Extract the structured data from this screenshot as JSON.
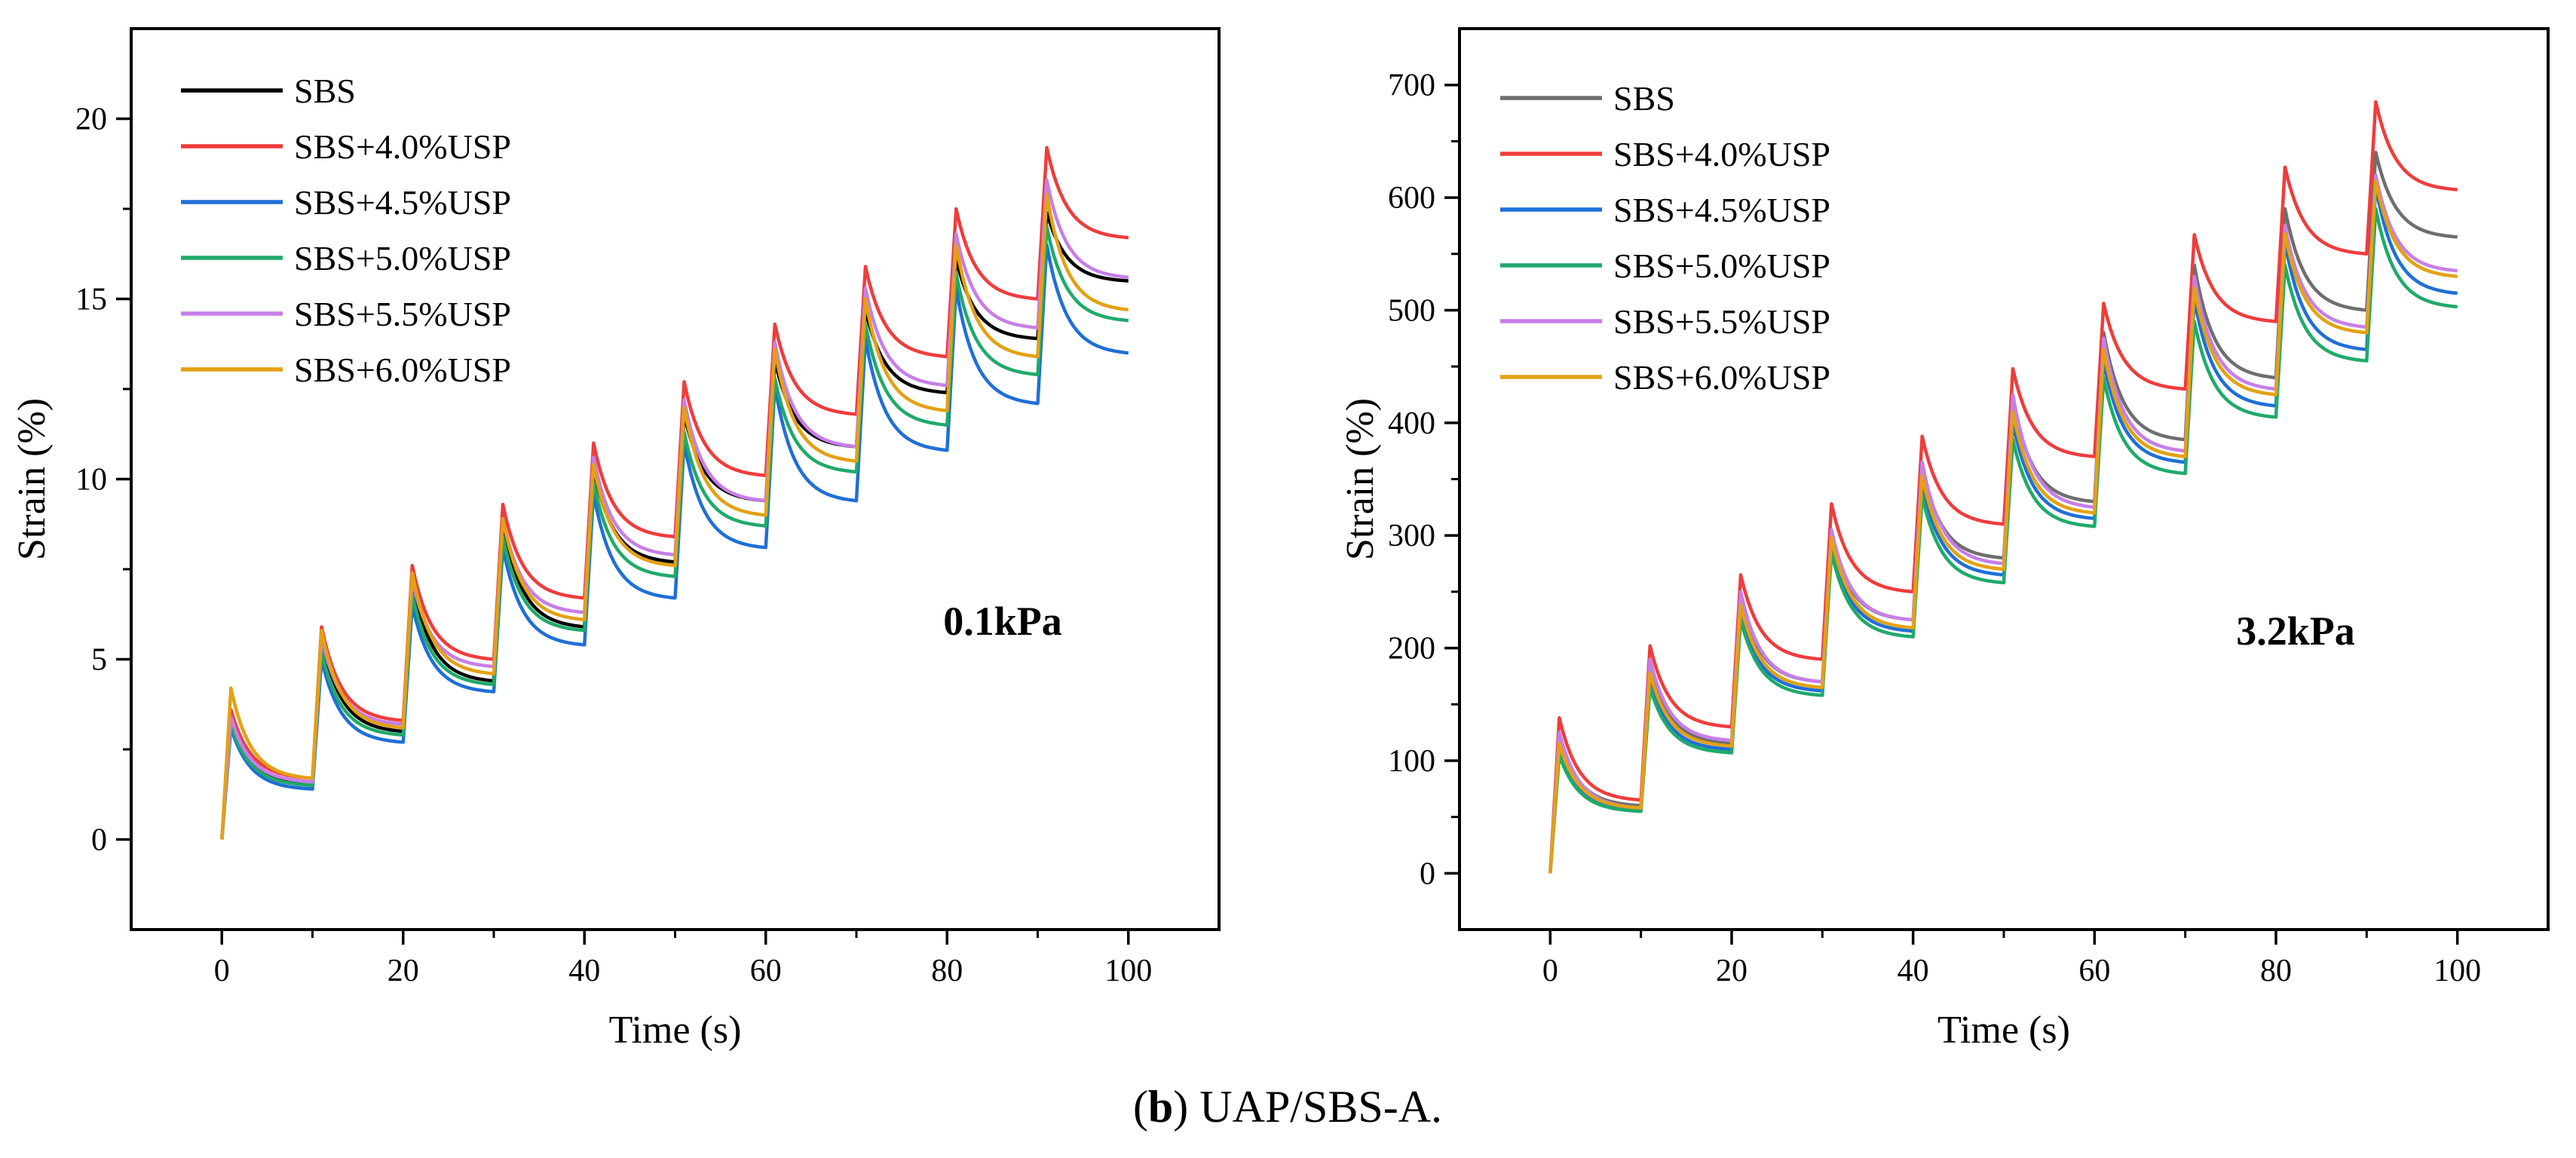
{
  "caption": {
    "letter": "b",
    "open": "(",
    "close": ")",
    "text": " UAP/SBS-A."
  },
  "chart_data": [
    {
      "type": "line",
      "title": "",
      "annotation": "0.1kPa",
      "xlabel": "Time (s)",
      "ylabel": "Strain (%)",
      "xlim": [
        -10,
        110
      ],
      "ylim": [
        -2.5,
        22.5
      ],
      "xticks": [
        0,
        20,
        40,
        60,
        80,
        100
      ],
      "yticks": [
        0,
        5,
        10,
        15,
        20
      ],
      "legend_position": "top-left",
      "series": [
        {
          "name": "SBS",
          "color": "#000000",
          "peaks": [
            3.5,
            5.6,
            7.2,
            8.8,
            10.3,
            11.8,
            13.3,
            14.7,
            16.1,
            17.4
          ],
          "ends": [
            1.5,
            3.0,
            4.4,
            5.9,
            7.7,
            9.4,
            10.9,
            12.4,
            13.9,
            15.5
          ]
        },
        {
          "name": "SBS+4.0%USP",
          "color": "#f03c3c",
          "peaks": [
            3.6,
            5.9,
            7.6,
            9.3,
            11.0,
            12.7,
            14.3,
            15.9,
            17.5,
            19.2
          ],
          "ends": [
            1.7,
            3.3,
            5.0,
            6.7,
            8.4,
            10.1,
            11.8,
            13.4,
            15.0,
            16.7
          ]
        },
        {
          "name": "SBS+4.5%USP",
          "color": "#1f6fd6",
          "peaks": [
            3.1,
            5.0,
            6.5,
            8.1,
            9.6,
            11.0,
            12.6,
            13.9,
            15.3,
            16.5
          ],
          "ends": [
            1.4,
            2.7,
            4.1,
            5.4,
            6.7,
            8.1,
            9.4,
            10.8,
            12.1,
            13.5
          ]
        },
        {
          "name": "SBS+5.0%USP",
          "color": "#1faa6a",
          "peaks": [
            3.2,
            5.2,
            6.8,
            8.4,
            9.9,
            11.3,
            12.8,
            14.3,
            15.7,
            17.0
          ],
          "ends": [
            1.5,
            2.9,
            4.3,
            5.8,
            7.3,
            8.7,
            10.2,
            11.5,
            12.9,
            14.4
          ]
        },
        {
          "name": "SBS+5.5%USP",
          "color": "#c77ee8",
          "peaks": [
            3.4,
            5.6,
            7.2,
            8.9,
            10.6,
            12.2,
            13.8,
            15.3,
            16.8,
            18.3
          ],
          "ends": [
            1.6,
            3.2,
            4.8,
            6.3,
            7.9,
            9.4,
            10.9,
            12.6,
            14.2,
            15.6
          ]
        },
        {
          "name": "SBS+6.0%USP",
          "color": "#e3a113",
          "peaks": [
            4.2,
            5.8,
            7.4,
            8.9,
            10.4,
            12.0,
            13.6,
            15.0,
            16.5,
            17.9
          ],
          "ends": [
            1.7,
            3.1,
            4.6,
            6.1,
            7.6,
            9.0,
            10.5,
            11.9,
            13.4,
            14.7
          ]
        }
      ]
    },
    {
      "type": "line",
      "title": "",
      "annotation": "3.2kPa",
      "xlabel": "Time (s)",
      "ylabel": "Strain (%)",
      "xlim": [
        -10,
        110
      ],
      "ylim": [
        -50,
        750
      ],
      "xticks": [
        0,
        20,
        40,
        60,
        80,
        100
      ],
      "yticks": [
        0,
        100,
        200,
        300,
        400,
        500,
        600,
        700
      ],
      "legend_position": "top-left",
      "series": [
        {
          "name": "SBS",
          "color": "#6e6e6e",
          "peaks": [
            120,
            185,
            245,
            300,
            360,
            420,
            480,
            540,
            590,
            640
          ],
          "ends": [
            60,
            115,
            170,
            225,
            280,
            330,
            385,
            440,
            500,
            565
          ]
        },
        {
          "name": "SBS+4.0%USP",
          "color": "#f03c3c",
          "peaks": [
            138,
            202,
            265,
            328,
            388,
            448,
            506,
            567,
            627,
            685
          ],
          "ends": [
            65,
            130,
            190,
            250,
            310,
            370,
            430,
            490,
            550,
            607
          ]
        },
        {
          "name": "SBS+4.5%USP",
          "color": "#1f6fd6",
          "peaks": [
            110,
            170,
            230,
            290,
            345,
            400,
            455,
            510,
            560,
            610
          ],
          "ends": [
            57,
            110,
            162,
            215,
            265,
            315,
            365,
            415,
            465,
            515
          ]
        },
        {
          "name": "SBS+5.0%USP",
          "color": "#1faa6a",
          "peaks": [
            105,
            165,
            225,
            285,
            335,
            385,
            440,
            490,
            540,
            590
          ],
          "ends": [
            55,
            107,
            158,
            210,
            258,
            308,
            355,
            405,
            455,
            503
          ]
        },
        {
          "name": "SBS+5.5%USP",
          "color": "#c77ee8",
          "peaks": [
            125,
            190,
            250,
            305,
            365,
            425,
            475,
            530,
            575,
            620
          ],
          "ends": [
            58,
            118,
            170,
            225,
            275,
            325,
            375,
            430,
            485,
            535
          ]
        },
        {
          "name": "SBS+6.0%USP",
          "color": "#e3a113",
          "peaks": [
            115,
            178,
            238,
            298,
            353,
            410,
            465,
            520,
            568,
            615
          ],
          "ends": [
            58,
            113,
            165,
            218,
            270,
            320,
            370,
            425,
            480,
            530
          ]
        }
      ]
    }
  ]
}
